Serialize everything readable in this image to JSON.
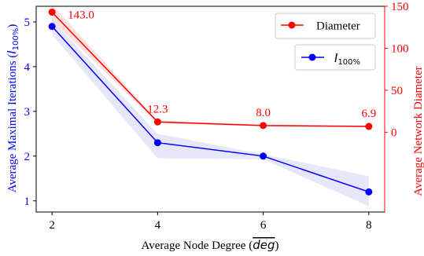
{
  "chart_data": {
    "type": "line",
    "x": [
      2,
      4,
      6,
      8
    ],
    "xlabel_prefix": "Average Node Degree (",
    "xlabel_math": "deg",
    "xlabel_suffix": ")",
    "xlim": [
      1.7,
      8.3
    ],
    "xticks": [
      "2",
      "4",
      "6",
      "8"
    ],
    "ylabel_left_prefix": "Average Maximal Iterations (",
    "ylabel_left_math": "I",
    "ylabel_left_sub": "100%",
    "ylabel_left_suffix": ")",
    "ylim_left": [
      0.75,
      5.35
    ],
    "yticks_left": [
      "1",
      "2",
      "3",
      "4",
      "5"
    ],
    "ylabel_right": "Average Network Diameter",
    "ylim_right": [
      -95,
      150
    ],
    "yticks_right": [
      "0",
      "50",
      "100",
      "150"
    ],
    "grid": false,
    "series": [
      {
        "name": "Diameter",
        "axis": "right",
        "color": "#ff0000",
        "values": [
          143.0,
          12.3,
          8.0,
          6.9
        ],
        "band_lower": [
          133,
          10.5,
          7.0,
          6.0
        ],
        "band_upper": [
          152,
          14.0,
          9.0,
          7.8
        ],
        "data_labels": [
          "143.0",
          "12.3",
          "8.0",
          "6.9"
        ]
      },
      {
        "name_math": "I",
        "name_sub": "100%",
        "axis": "left",
        "color": "#0000ff",
        "values": [
          4.9,
          2.3,
          2.0,
          1.2
        ],
        "band_lower": [
          4.72,
          1.95,
          1.93,
          0.88
        ],
        "band_upper": [
          5.05,
          2.5,
          2.04,
          1.55
        ]
      }
    ],
    "legends": [
      {
        "entry": "diameter",
        "position": "top-right"
      },
      {
        "entry": "iterations",
        "position": "upper-right"
      }
    ]
  }
}
